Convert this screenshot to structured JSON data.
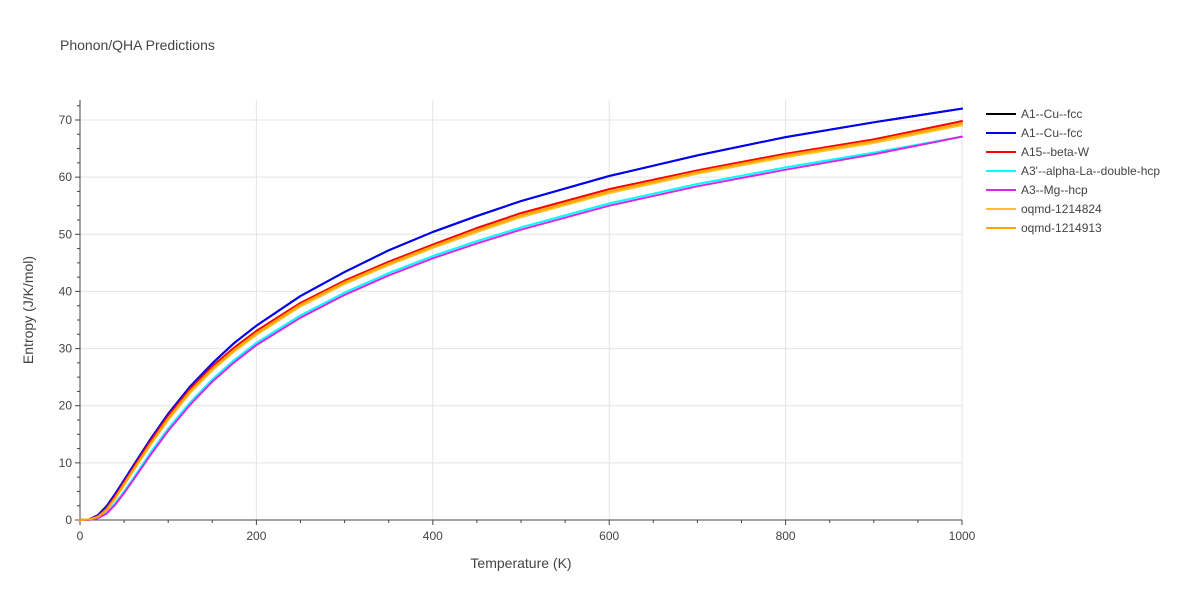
{
  "chart_data": {
    "type": "line",
    "title": "Phonon/QHA Predictions",
    "xlabel": "Temperature (K)",
    "ylabel": "Entropy (J/K/mol)",
    "xlim": [
      0,
      1000
    ],
    "ylim": [
      0,
      73.5
    ],
    "x_ticks": [
      0,
      200,
      400,
      600,
      800,
      1000
    ],
    "y_ticks": [
      0,
      10,
      20,
      30,
      40,
      50,
      60,
      70
    ],
    "grid": true,
    "legend_position": "top-right",
    "x": [
      0,
      10,
      20,
      30,
      40,
      50,
      60,
      80,
      100,
      125,
      150,
      175,
      200,
      250,
      300,
      350,
      400,
      450,
      500,
      600,
      700,
      800,
      900,
      1000
    ],
    "series": [
      {
        "name": "A1--Cu--fcc",
        "color": "#000000",
        "values": [
          0,
          0.1,
          0.8,
          2.4,
          4.6,
          7.0,
          9.4,
          14.2,
          18.6,
          23.4,
          27.4,
          31.0,
          34.0,
          39.2,
          43.4,
          47.2,
          50.4,
          53.2,
          55.8,
          60.2,
          63.8,
          67.0,
          69.6,
          72.0
        ]
      },
      {
        "name": "A1--Cu--fcc",
        "color": "#0000ff",
        "values": [
          0,
          0.1,
          0.8,
          2.4,
          4.6,
          7.0,
          9.4,
          14.2,
          18.6,
          23.4,
          27.4,
          31.0,
          34.0,
          39.2,
          43.4,
          47.2,
          50.4,
          53.2,
          55.8,
          60.2,
          63.8,
          67.0,
          69.6,
          72.0
        ]
      },
      {
        "name": "A15--beta-W",
        "color": "#ff0000",
        "values": [
          0,
          0.1,
          0.6,
          2.0,
          4.2,
          6.6,
          9.0,
          13.8,
          18.2,
          23.0,
          26.9,
          30.2,
          33.1,
          38.0,
          41.9,
          45.2,
          48.2,
          51.1,
          53.7,
          57.9,
          61.2,
          64.1,
          66.6,
          69.8
        ]
      },
      {
        "name": "A3'--alpha-La--double-hcp",
        "color": "#00ffff",
        "values": [
          0,
          0.1,
          0.4,
          1.3,
          3.0,
          5.0,
          7.2,
          11.8,
          16.0,
          20.6,
          24.6,
          28.0,
          31.0,
          35.8,
          39.8,
          43.2,
          46.2,
          48.8,
          51.2,
          55.4,
          58.8,
          61.7,
          64.3,
          67.1
        ]
      },
      {
        "name": "A3--Mg--hcp",
        "color": "#d62ae6",
        "values": [
          0,
          0.0,
          0.3,
          1.1,
          2.7,
          4.7,
          6.9,
          11.4,
          15.6,
          20.2,
          24.2,
          27.6,
          30.6,
          35.4,
          39.4,
          42.8,
          45.8,
          48.4,
          50.8,
          55.0,
          58.4,
          61.3,
          64.0,
          67.1
        ]
      },
      {
        "name": "oqmd-1214824",
        "color": "#ffc125",
        "values": [
          0,
          0.1,
          0.5,
          1.7,
          3.8,
          6.1,
          8.5,
          13.2,
          17.5,
          22.3,
          26.2,
          29.5,
          32.4,
          37.4,
          41.3,
          44.6,
          47.6,
          50.4,
          53.0,
          57.2,
          60.6,
          63.5,
          66.0,
          69.1
        ]
      },
      {
        "name": "oqmd-1214913",
        "color": "#ffa500",
        "values": [
          0,
          0.1,
          0.5,
          1.8,
          3.9,
          6.3,
          8.7,
          13.4,
          17.8,
          22.6,
          26.5,
          29.8,
          32.7,
          37.7,
          41.6,
          44.9,
          47.9,
          50.7,
          53.3,
          57.5,
          60.9,
          63.8,
          66.3,
          69.4
        ]
      }
    ]
  }
}
